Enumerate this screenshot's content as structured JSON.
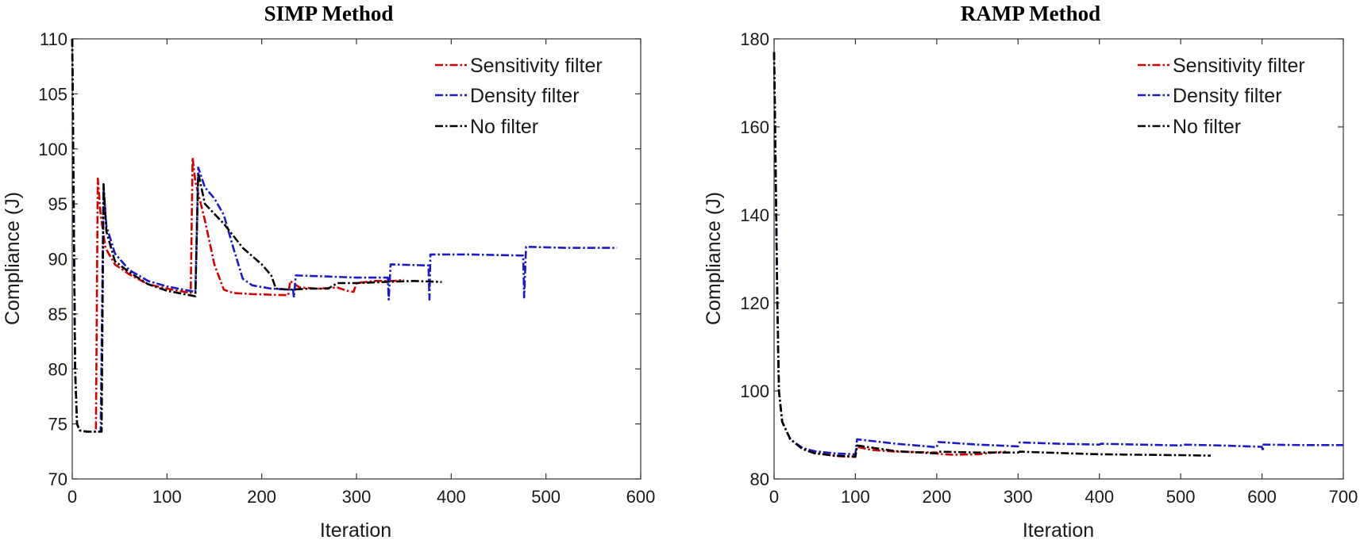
{
  "chart_data": [
    {
      "type": "line",
      "title": "SIMP Method",
      "xlabel": "Iteration",
      "ylabel": "Compliance (J)",
      "xlim": [
        0,
        600
      ],
      "ylim": [
        70,
        110
      ],
      "xticks": [
        0,
        100,
        200,
        300,
        400,
        500,
        600
      ],
      "yticks": [
        70,
        75,
        80,
        85,
        90,
        95,
        100,
        105,
        110
      ],
      "grid": false,
      "legend_position": "top-right",
      "series": [
        {
          "name": "Sensitivity filter",
          "color": "#d40000",
          "points": [
            [
              0,
              110
            ],
            [
              1,
              100
            ],
            [
              3,
              80
            ],
            [
              5,
              75
            ],
            [
              8,
              74.4
            ],
            [
              15,
              74.3
            ],
            [
              25,
              74.3
            ],
            [
              27,
              97.3
            ],
            [
              30,
              94
            ],
            [
              35,
              91
            ],
            [
              45,
              89.5
            ],
            [
              60,
              88.6
            ],
            [
              80,
              87.7
            ],
            [
              100,
              87.3
            ],
            [
              125,
              86.9
            ],
            [
              127,
              99.2
            ],
            [
              130,
              97
            ],
            [
              140,
              93.5
            ],
            [
              150,
              89.5
            ],
            [
              160,
              87.2
            ],
            [
              170,
              86.9
            ],
            [
              190,
              86.8
            ],
            [
              228,
              86.7
            ],
            [
              230,
              88
            ],
            [
              240,
              87.4
            ],
            [
              260,
              87.3
            ],
            [
              280,
              87.4
            ],
            [
              290,
              87.1
            ],
            [
              297,
              87
            ],
            [
              300,
              87.8
            ],
            [
              320,
              88
            ],
            [
              340,
              88
            ],
            [
              350,
              88.1
            ]
          ]
        },
        {
          "name": "Density filter",
          "color": "#1a1acc",
          "points": [
            [
              0,
              110
            ],
            [
              1,
              100
            ],
            [
              3,
              80
            ],
            [
              5,
              75
            ],
            [
              8,
              74.4
            ],
            [
              15,
              74.3
            ],
            [
              30,
              74.3
            ],
            [
              33,
              96.5
            ],
            [
              36,
              93
            ],
            [
              45,
              90.5
            ],
            [
              60,
              89
            ],
            [
              80,
              88
            ],
            [
              100,
              87.5
            ],
            [
              130,
              87
            ],
            [
              133,
              98.3
            ],
            [
              140,
              96.5
            ],
            [
              150,
              95.5
            ],
            [
              160,
              94
            ],
            [
              170,
              91
            ],
            [
              180,
              88.2
            ],
            [
              190,
              87.6
            ],
            [
              210,
              87.3
            ],
            [
              233,
              87.2
            ],
            [
              234,
              86.5
            ],
            [
              236,
              88.5
            ],
            [
              270,
              88.4
            ],
            [
              300,
              88.3
            ],
            [
              333,
              88.3
            ],
            [
              334,
              86.3
            ],
            [
              336,
              89.5
            ],
            [
              376,
              89.4
            ],
            [
              377,
              86.3
            ],
            [
              378,
              90.4
            ],
            [
              420,
              90.4
            ],
            [
              476,
              90.3
            ],
            [
              477,
              86.5
            ],
            [
              479,
              91.1
            ],
            [
              520,
              91
            ],
            [
              575,
              91
            ]
          ]
        },
        {
          "name": "No filter",
          "color": "#000000",
          "points": [
            [
              0,
              110
            ],
            [
              1,
              100
            ],
            [
              3,
              80
            ],
            [
              5,
              75
            ],
            [
              8,
              74.4
            ],
            [
              15,
              74.3
            ],
            [
              31,
              74.3
            ],
            [
              33,
              96.8
            ],
            [
              36,
              92.5
            ],
            [
              45,
              89.8
            ],
            [
              60,
              88.8
            ],
            [
              80,
              87.7
            ],
            [
              100,
              87.1
            ],
            [
              130,
              86.6
            ],
            [
              133,
              97.8
            ],
            [
              140,
              95
            ],
            [
              160,
              93.2
            ],
            [
              180,
              91
            ],
            [
              200,
              89.5
            ],
            [
              210,
              88.5
            ],
            [
              215,
              87.3
            ],
            [
              230,
              87.2
            ],
            [
              250,
              87.3
            ],
            [
              270,
              87.3
            ],
            [
              280,
              87.8
            ],
            [
              300,
              87.8
            ],
            [
              330,
              87.9
            ],
            [
              360,
              88
            ],
            [
              390,
              87.9
            ]
          ]
        }
      ]
    },
    {
      "type": "line",
      "title": "RAMP Method",
      "xlabel": "Iteration",
      "ylabel": "Compliance (J)",
      "xlim": [
        0,
        700
      ],
      "ylim": [
        80,
        180
      ],
      "xticks": [
        0,
        100,
        200,
        300,
        400,
        500,
        600,
        700
      ],
      "yticks": [
        80,
        100,
        120,
        140,
        160,
        180
      ],
      "grid": false,
      "legend_position": "top-right",
      "series": [
        {
          "name": "Sensitivity filter",
          "color": "#d40000",
          "points": [
            [
              0,
              177
            ],
            [
              2,
              150
            ],
            [
              4,
              120
            ],
            [
              6,
              100
            ],
            [
              10,
              93
            ],
            [
              20,
              89
            ],
            [
              35,
              87
            ],
            [
              50,
              86
            ],
            [
              75,
              85.2
            ],
            [
              100,
              85
            ],
            [
              102,
              87.3
            ],
            [
              120,
              86.6
            ],
            [
              150,
              86.2
            ],
            [
              200,
              86
            ],
            [
              202,
              85.7
            ],
            [
              220,
              85.5
            ],
            [
              250,
              85.6
            ],
            [
              270,
              86
            ],
            [
              285,
              86.2
            ]
          ]
        },
        {
          "name": "Density filter",
          "color": "#1a1acc",
          "points": [
            [
              0,
              177
            ],
            [
              2,
              150
            ],
            [
              4,
              120
            ],
            [
              6,
              100
            ],
            [
              10,
              93
            ],
            [
              20,
              89
            ],
            [
              35,
              87
            ],
            [
              50,
              86.3
            ],
            [
              75,
              85.8
            ],
            [
              100,
              85.6
            ],
            [
              102,
              89
            ],
            [
              150,
              88
            ],
            [
              200,
              87.2
            ],
            [
              202,
              88.4
            ],
            [
              250,
              87.8
            ],
            [
              300,
              87.4
            ],
            [
              302,
              88.3
            ],
            [
              350,
              88
            ],
            [
              400,
              87.8
            ],
            [
              402,
              88
            ],
            [
              450,
              87.8
            ],
            [
              500,
              87.6
            ],
            [
              502,
              87.8
            ],
            [
              550,
              87.6
            ],
            [
              600,
              87.3
            ],
            [
              601,
              86.3
            ],
            [
              602,
              87.8
            ],
            [
              650,
              87.7
            ],
            [
              700,
              87.7
            ]
          ]
        },
        {
          "name": "No filter",
          "color": "#000000",
          "points": [
            [
              0,
              177
            ],
            [
              2,
              150
            ],
            [
              4,
              120
            ],
            [
              6,
              100
            ],
            [
              10,
              93
            ],
            [
              20,
              89
            ],
            [
              35,
              86.8
            ],
            [
              50,
              85.8
            ],
            [
              75,
              85.3
            ],
            [
              100,
              85.1
            ],
            [
              102,
              87.6
            ],
            [
              150,
              86.3
            ],
            [
              200,
              85.8
            ],
            [
              202,
              86.2
            ],
            [
              250,
              86
            ],
            [
              300,
              86
            ],
            [
              302,
              86.2
            ],
            [
              350,
              85.9
            ],
            [
              400,
              85.6
            ],
            [
              450,
              85.5
            ],
            [
              500,
              85.4
            ],
            [
              537,
              85.3
            ]
          ]
        }
      ]
    }
  ]
}
